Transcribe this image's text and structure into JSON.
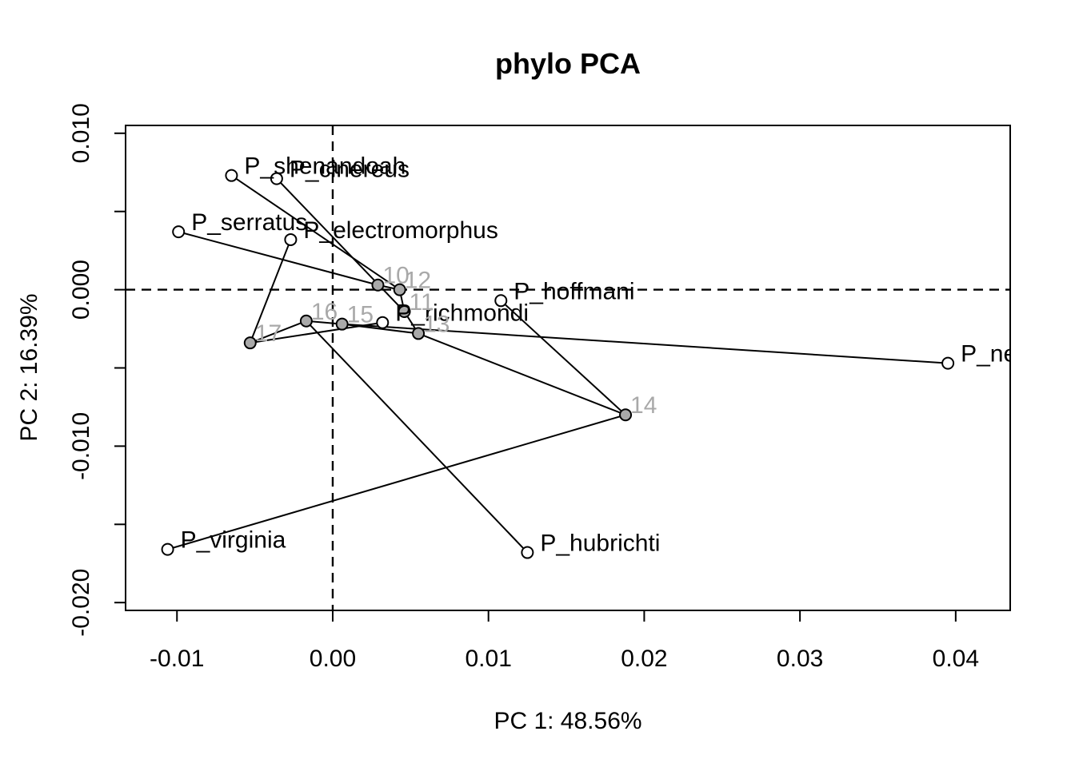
{
  "chart_data": {
    "type": "scatter",
    "title": "phylo PCA",
    "xlabel": "PC 1: 48.56%",
    "ylabel": "PC 2: 16.39%",
    "xlim": [
      -0.0133,
      0.0435
    ],
    "ylim": [
      -0.0205,
      0.0105
    ],
    "x_ticks": [
      -0.01,
      0.0,
      0.01,
      0.02,
      0.03,
      0.04
    ],
    "x_tick_labels": [
      "-0.01",
      "0.00",
      "0.01",
      "0.02",
      "0.03",
      "0.04"
    ],
    "y_ticks": [
      0.01,
      0.005,
      0.0,
      -0.005,
      -0.01,
      -0.015,
      -0.02
    ],
    "y_tick_labels": [
      "0.010",
      "",
      "0.000",
      "",
      "-0.010",
      "",
      "-0.020"
    ],
    "reference_lines": {
      "x": 0.0,
      "y": 0.0,
      "style": "dashed"
    },
    "tips": [
      {
        "id": "P_shenandoah",
        "label": "P_shenandoah",
        "x": -0.0065,
        "y": 0.0073
      },
      {
        "id": "P_cinereus",
        "label": "P_cinereus",
        "x": -0.0036,
        "y": 0.0071
      },
      {
        "id": "P_serratus",
        "label": "P_serratus",
        "x": -0.0099,
        "y": 0.0037
      },
      {
        "id": "P_electromorphus",
        "label": "P_electromorphus",
        "x": -0.0027,
        "y": 0.0032
      },
      {
        "id": "P_hoffmani",
        "label": "P_hoffmani",
        "x": 0.0108,
        "y": -0.0007
      },
      {
        "id": "P_richmondi",
        "label": "P_richmondi",
        "x": 0.0032,
        "y": -0.0021
      },
      {
        "id": "P_ne",
        "label": "P_ne",
        "x": 0.0395,
        "y": -0.0047
      },
      {
        "id": "P_virginia",
        "label": "P_virginia",
        "x": -0.0106,
        "y": -0.0166
      },
      {
        "id": "P_hubrichti",
        "label": "P_hubrichti",
        "x": 0.0125,
        "y": -0.0168
      }
    ],
    "nodes": [
      {
        "id": "10",
        "label": "10",
        "x": 0.0029,
        "y": 0.0003
      },
      {
        "id": "12",
        "label": "12",
        "x": 0.0043,
        "y": 0.0
      },
      {
        "id": "11",
        "label": "11",
        "x": 0.0046,
        "y": -0.0014
      },
      {
        "id": "13",
        "label": "13",
        "x": 0.0055,
        "y": -0.0028
      },
      {
        "id": "14",
        "label": "14",
        "x": 0.0188,
        "y": -0.008
      },
      {
        "id": "15",
        "label": "15",
        "x": 0.0006,
        "y": -0.0022
      },
      {
        "id": "16",
        "label": "16",
        "x": -0.0017,
        "y": -0.002
      },
      {
        "id": "17",
        "label": "17",
        "x": -0.0053,
        "y": -0.0034
      }
    ],
    "edges": [
      [
        "10",
        "P_serratus"
      ],
      [
        "10",
        "12"
      ],
      [
        "12",
        "P_shenandoah"
      ],
      [
        "12",
        "11"
      ],
      [
        "11",
        "P_cinereus"
      ],
      [
        "11",
        "13"
      ],
      [
        "13",
        "15"
      ],
      [
        "13",
        "14"
      ],
      [
        "14",
        "P_hoffmani"
      ],
      [
        "14",
        "P_virginia"
      ],
      [
        "15",
        "P_ne"
      ],
      [
        "15",
        "16"
      ],
      [
        "16",
        "P_hubrichti"
      ],
      [
        "16",
        "17"
      ],
      [
        "17",
        "P_electromorphus"
      ],
      [
        "17",
        "P_richmondi"
      ]
    ],
    "colors": {
      "tip_fill": "#ffffff",
      "node_fill": "#a9a9a9",
      "node_label": "#a9a9a9",
      "line": "#000000"
    }
  }
}
